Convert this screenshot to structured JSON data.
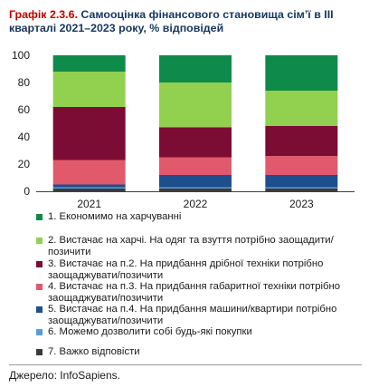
{
  "header": {
    "prefix": "Графік 2.3.6.",
    "title": "Самооцінка фінансового становища сім’ї в III кварталі 2021–2023 року, % відповідей"
  },
  "chart_data": {
    "type": "bar",
    "stacked": true,
    "categories": [
      "2021",
      "2022",
      "2023"
    ],
    "ylim": [
      0,
      100
    ],
    "yticks": [
      0,
      20,
      40,
      60,
      80,
      100
    ],
    "grid": false,
    "series": [
      {
        "name": "7. Важко відповісти",
        "color": "#3b3b3b",
        "values": [
          2,
          2,
          2
        ]
      },
      {
        "name": "6. Можемо дозволити собі будь-які покупки",
        "color": "#5b9bd5",
        "values": [
          1,
          1,
          1
        ]
      },
      {
        "name": "5. Вистачає на п.4. На придбання машини/квартири потрібно заощаджувати/позичити",
        "color": "#1f4e8c",
        "values": [
          2,
          9,
          9
        ]
      },
      {
        "name": "4. Вистачає на п.3. На придбання габаритної техніки потрібно заощаджувати/позичити",
        "color": "#e05a6b",
        "values": [
          18,
          13,
          14
        ]
      },
      {
        "name": "3. Вистачає на п.2. На придбання дрібної техніки потрібно заощаджувати/позичити",
        "color": "#7b0d34",
        "values": [
          39,
          22,
          22
        ]
      },
      {
        "name": "2. Вистачає на харчі. На одяг та взуття потрібно заощадити/позичити",
        "color": "#92d050",
        "values": [
          26,
          33,
          26
        ]
      },
      {
        "name": "1. Економимо на харчуванні",
        "color": "#0e8a4a",
        "values": [
          12,
          20,
          26
        ]
      }
    ]
  },
  "legend": [
    {
      "label": "1. Економимо на харчуванні",
      "color": "#0e8a4a"
    },
    {
      "label": "2. Вистачає на харчі. На одяг та взуття потрібно заощадити/позичити",
      "color": "#92d050"
    },
    {
      "label": "3. Вистачає на п.2. На придбання дрібної техніки потрібно заощаджувати/позичити",
      "color": "#7b0d34"
    },
    {
      "label": "4. Вистачає на п.3. На придбання габаритної техніки потрібно заощаджувати/позичити",
      "color": "#e05a6b"
    },
    {
      "label": "5. Вистачає на п.4. На придбання машини/квартири потрібно заощаджувати/позичити",
      "color": "#1f4e8c"
    },
    {
      "label": "6. Можемо дозволити собі будь-які покупки",
      "color": "#5b9bd5"
    },
    {
      "label": "7. Важко відповісти",
      "color": "#3b3b3b"
    }
  ],
  "source": "Джерело: InfoSapiens."
}
